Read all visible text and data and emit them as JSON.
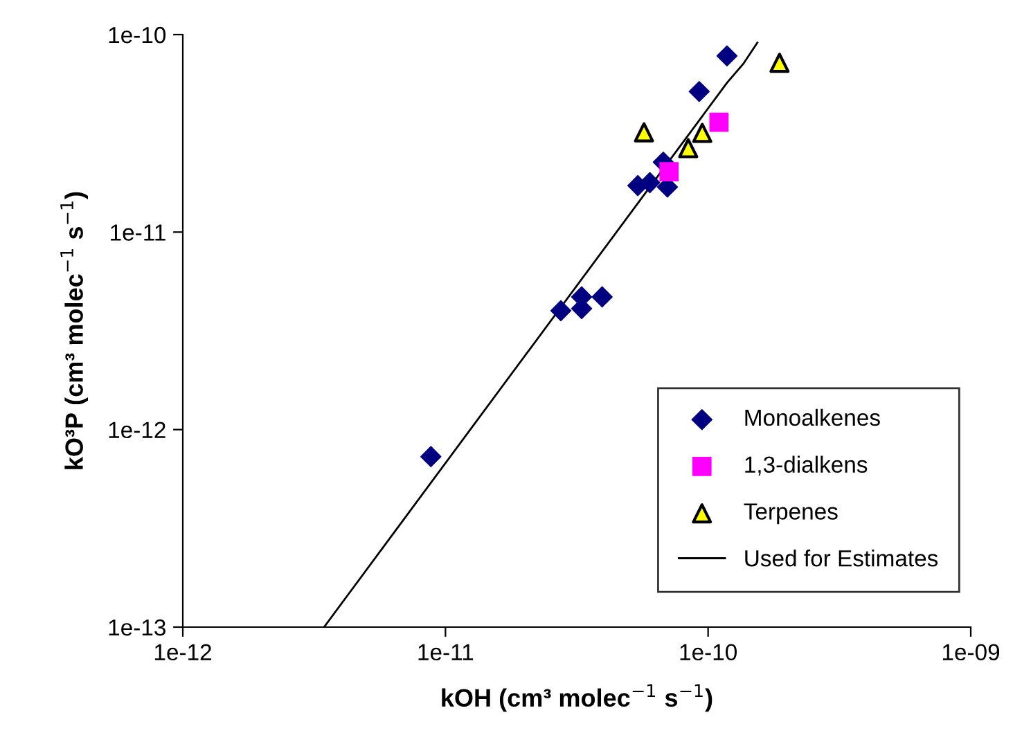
{
  "chart_data": {
    "type": "scatter",
    "xlabel": "kOH (cm³ molec$^{−1}$ s$^{−1}$)",
    "ylabel": "kO³P (cm³ molec$^{−1}$ s$^{−1}$)",
    "log": "xy",
    "xlim": [
      1e-12,
      1e-09
    ],
    "ylim": [
      1e-13,
      1e-10
    ],
    "xticks": [
      {
        "value": 1e-12,
        "label": "1e-12"
      },
      {
        "value": 1e-11,
        "label": "1e-11"
      },
      {
        "value": 1e-10,
        "label": "1e-10"
      },
      {
        "value": 1e-09,
        "label": "1e-09"
      }
    ],
    "yticks": [
      {
        "value": 1e-13,
        "label": "1e-13"
      },
      {
        "value": 1e-12,
        "label": "1e-12"
      },
      {
        "value": 1e-11,
        "label": "1e-11"
      },
      {
        "value": 1e-10,
        "label": "1e-10"
      }
    ],
    "grid": false,
    "legend": "bottom right",
    "series": [
      {
        "name": "Monoalkenes",
        "color": "#000080",
        "marker": "diamond",
        "x": [
          8.8e-12,
          2.75e-11,
          3.3e-11,
          3.3e-11,
          3.95e-11,
          5.4e-11,
          6e-11,
          6.75e-11,
          7e-11,
          9.25e-11,
          1.18e-10
        ],
        "values": [
          7.3e-13,
          4e-12,
          4.7e-12,
          4.1e-12,
          4.7e-12,
          1.72e-11,
          1.78e-11,
          2.26e-11,
          1.69e-11,
          5.15e-11,
          7.8e-11
        ]
      },
      {
        "name": "1,3-dialkens",
        "color": "#ff00ff",
        "marker": "square",
        "x": [
          1.1e-10,
          7.1e-11
        ],
        "values": [
          3.6e-11,
          2.02e-11
        ]
      },
      {
        "name": "Terpenes",
        "color": "#ffff00",
        "marker": "triangle",
        "x": [
          5.7e-11,
          8.4e-11,
          9.5e-11,
          1.87e-10
        ],
        "values": [
          3.2e-11,
          2.66e-11,
          3.18e-11,
          7.2e-11
        ]
      },
      {
        "name": "Used for Estimates",
        "type": "line",
        "color": "#000000",
        "marker": "none",
        "line_style": "solid",
        "x": [
          3.45e-12,
          1.18e-10,
          1.36e-10,
          1.54e-10
        ],
        "values": [
          1e-13,
          5.7e-11,
          7.1e-11,
          9.1e-11
        ]
      }
    ]
  }
}
